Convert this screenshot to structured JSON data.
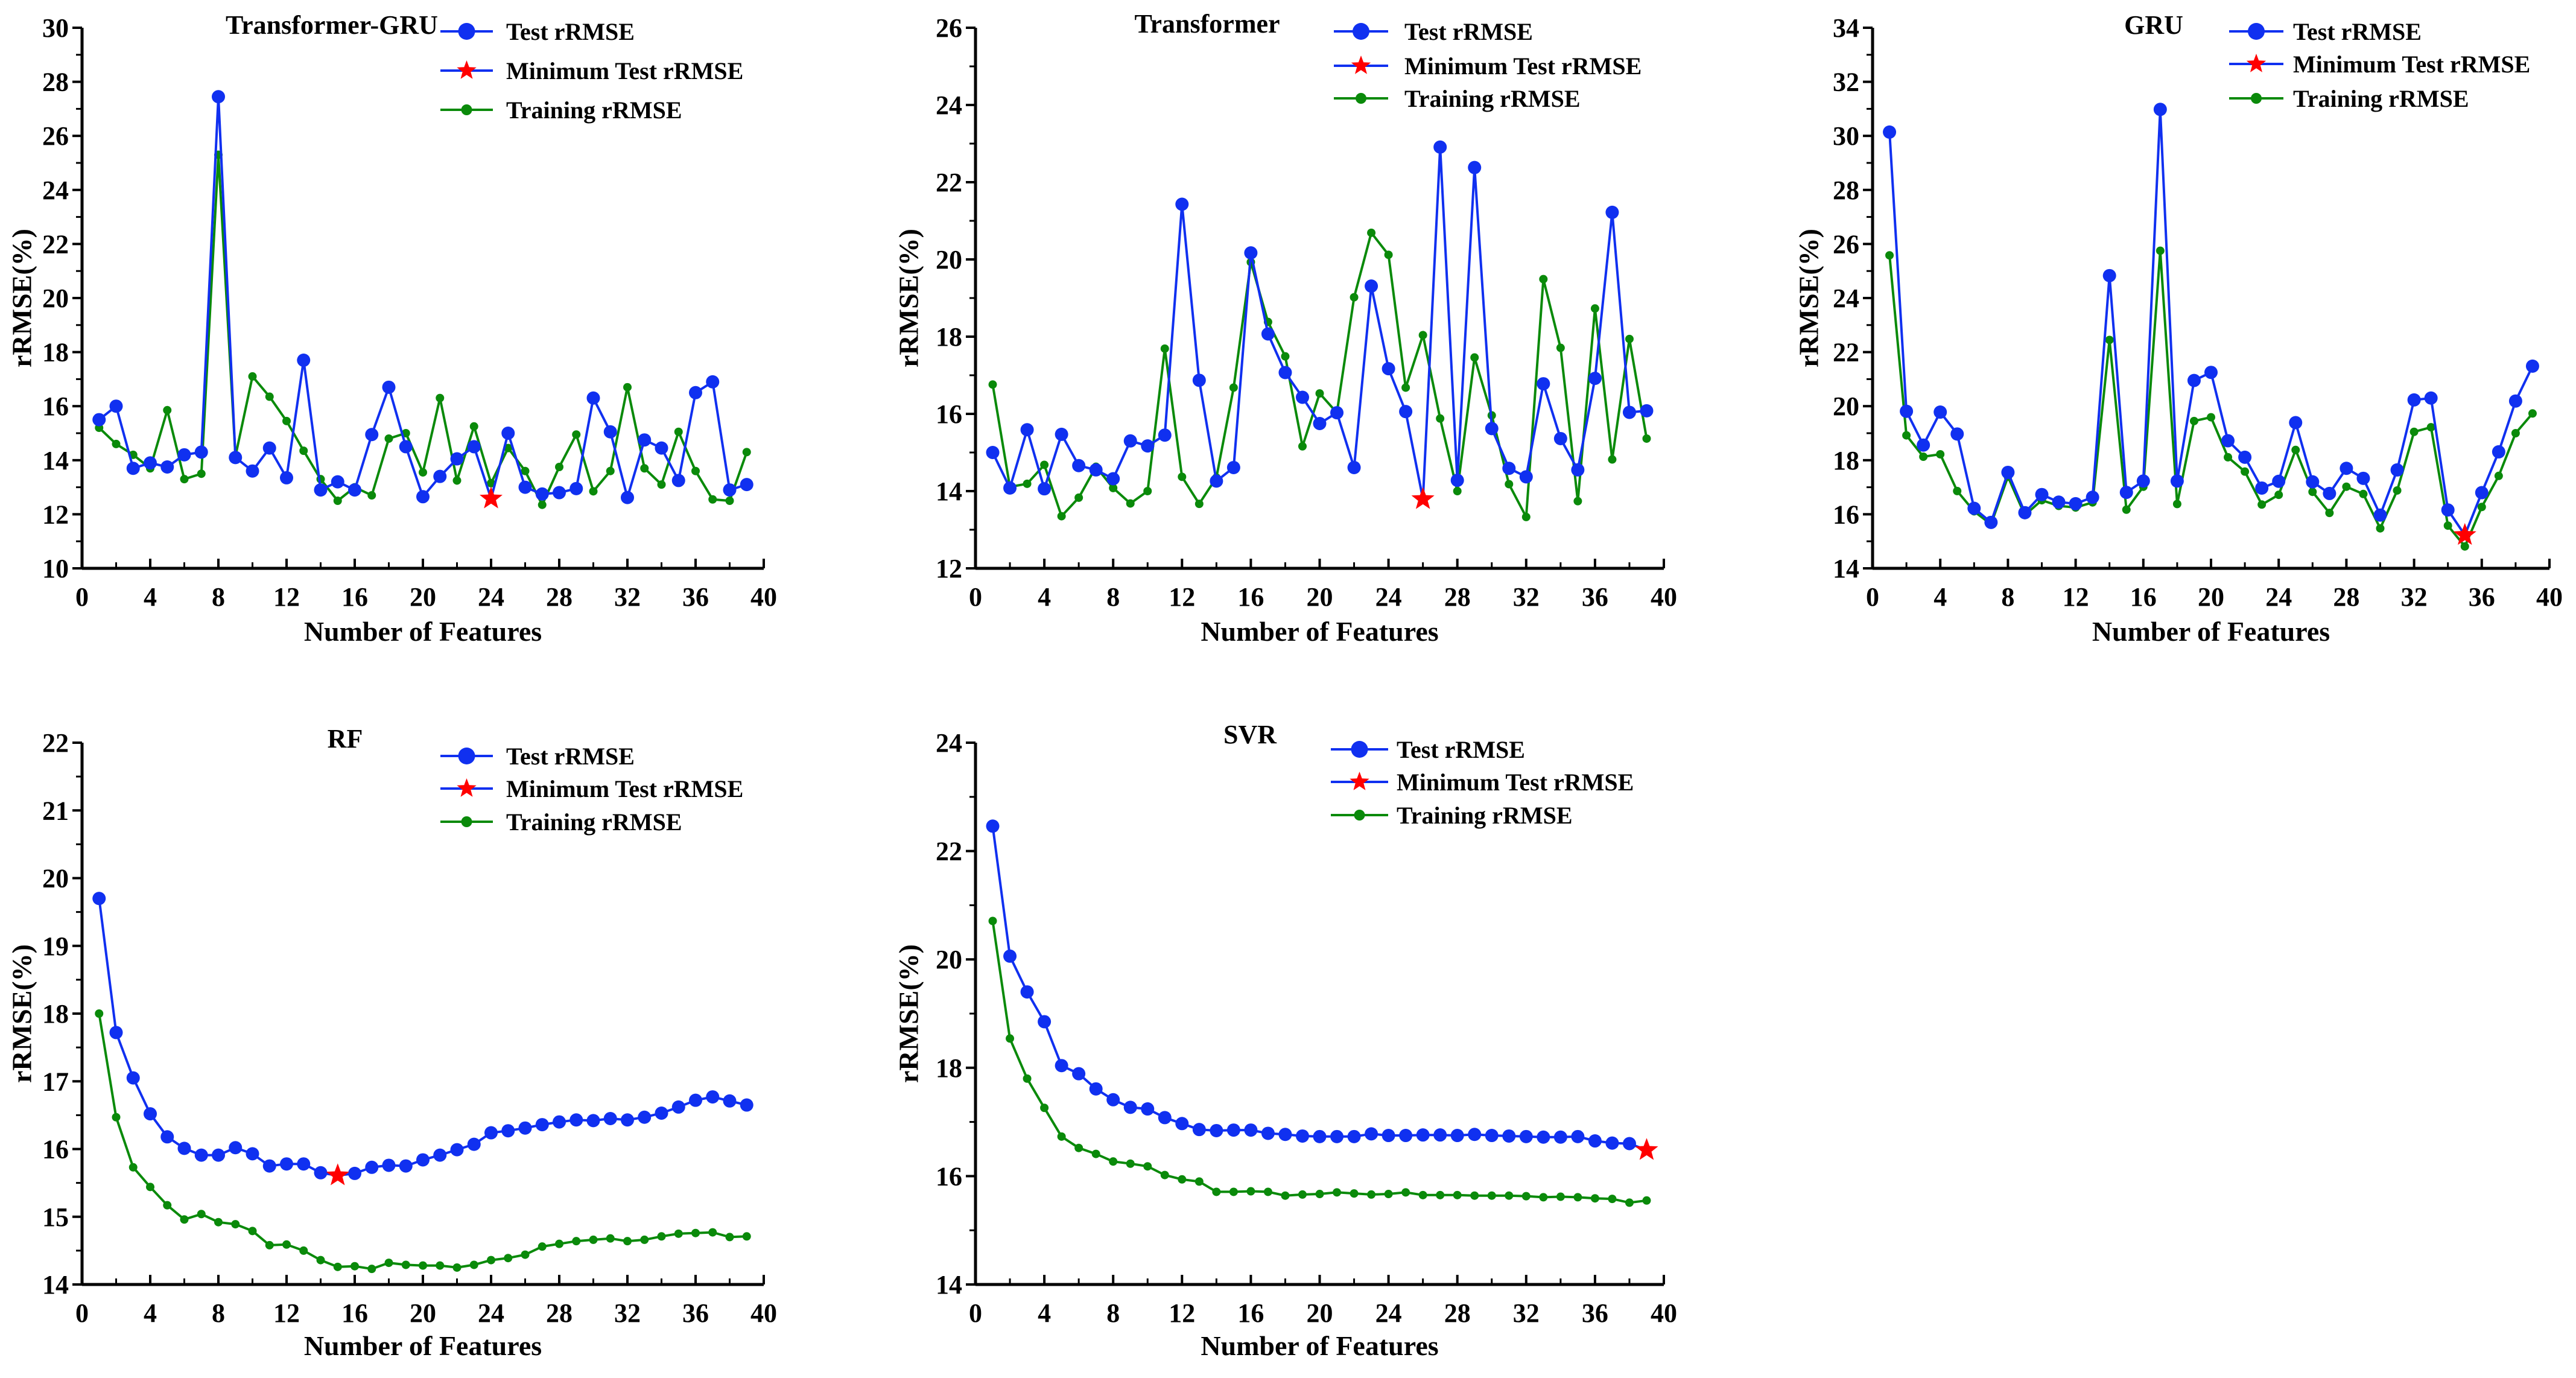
{
  "colors": {
    "test": "#1030f0",
    "train": "#0a8a0a",
    "min": "#ff0000",
    "axis": "#000000"
  },
  "legend": {
    "test": "Test rRMSE",
    "min": "Minimum Test rRMSE",
    "train": "Training rRMSE"
  },
  "chart_data": [
    {
      "type": "line",
      "title": "Transformer-GRU",
      "xlabel": "Number of Features",
      "ylabel": "rRMSE(%)",
      "xlim": [
        0,
        40
      ],
      "ylim": [
        10,
        30
      ],
      "xticks": [
        0,
        4,
        8,
        12,
        16,
        20,
        24,
        28,
        32,
        36,
        40
      ],
      "yticks": [
        10,
        12,
        14,
        16,
        18,
        20,
        22,
        24,
        26,
        28,
        30
      ],
      "x": [
        1,
        2,
        3,
        4,
        5,
        6,
        7,
        8,
        9,
        10,
        11,
        12,
        13,
        14,
        15,
        16,
        17,
        18,
        19,
        20,
        21,
        22,
        23,
        24,
        25,
        26,
        27,
        28,
        29,
        30,
        31,
        32,
        33,
        34,
        35,
        36,
        37,
        38,
        39
      ],
      "series": [
        {
          "name": "Test rRMSE",
          "values": [
            15.5,
            16.0,
            13.7,
            13.9,
            13.75,
            14.2,
            14.3,
            27.45,
            14.1,
            13.6,
            14.45,
            13.35,
            17.7,
            12.9,
            13.2,
            12.9,
            14.95,
            16.7,
            14.5,
            12.65,
            13.4,
            14.05,
            14.5,
            12.58,
            15.0,
            13.0,
            12.75,
            12.8,
            12.95,
            16.3,
            15.05,
            12.62,
            14.75,
            14.45,
            13.25,
            16.5,
            16.9,
            12.9,
            13.1
          ]
        },
        {
          "name": "Training rRMSE",
          "values": [
            15.2,
            14.6,
            14.2,
            13.7,
            15.85,
            13.3,
            13.5,
            25.3,
            14.15,
            17.1,
            16.35,
            15.45,
            14.35,
            13.3,
            12.5,
            13.0,
            12.7,
            14.8,
            15.0,
            13.55,
            16.3,
            13.25,
            15.25,
            13.15,
            14.45,
            13.6,
            12.35,
            13.75,
            14.95,
            12.85,
            13.6,
            16.7,
            13.7,
            13.1,
            15.05,
            13.6,
            12.55,
            12.5,
            14.3
          ]
        }
      ],
      "minimum": {
        "x": 24,
        "y": 12.58
      }
    },
    {
      "type": "line",
      "title": "Transformer",
      "xlabel": "Number of Features",
      "ylabel": "rRMSE(%)",
      "xlim": [
        0,
        40
      ],
      "ylim": [
        12,
        26
      ],
      "xticks": [
        0,
        4,
        8,
        12,
        16,
        20,
        24,
        28,
        32,
        36,
        40
      ],
      "yticks": [
        12,
        14,
        16,
        18,
        20,
        22,
        24,
        26
      ],
      "x": [
        1,
        2,
        3,
        4,
        5,
        6,
        7,
        8,
        9,
        10,
        11,
        12,
        13,
        14,
        15,
        16,
        17,
        18,
        19,
        20,
        21,
        22,
        23,
        24,
        25,
        26,
        27,
        28,
        29,
        30,
        31,
        32,
        33,
        34,
        35,
        36,
        37,
        38,
        39
      ],
      "series": [
        {
          "name": "Test rRMSE",
          "values": [
            15.0,
            14.08,
            15.59,
            14.06,
            15.47,
            14.66,
            14.55,
            14.32,
            15.3,
            15.17,
            15.45,
            21.43,
            16.87,
            14.26,
            14.61,
            20.17,
            18.07,
            17.07,
            16.43,
            15.75,
            16.03,
            14.61,
            19.31,
            17.17,
            16.06,
            13.79,
            22.91,
            14.28,
            22.38,
            15.62,
            14.59,
            14.37,
            16.78,
            15.36,
            14.55,
            16.92,
            21.22,
            16.04,
            16.08
          ]
        },
        {
          "name": "Training rRMSE",
          "values": [
            16.76,
            14.11,
            14.19,
            14.68,
            13.35,
            13.83,
            14.63,
            14.08,
            13.68,
            14.0,
            17.69,
            14.37,
            13.67,
            14.35,
            16.68,
            19.93,
            18.38,
            17.49,
            15.16,
            16.53,
            16.03,
            19.02,
            20.69,
            20.12,
            16.68,
            18.04,
            15.88,
            14.0,
            17.46,
            15.96,
            14.18,
            13.33,
            19.49,
            17.71,
            13.74,
            18.73,
            14.82,
            17.94,
            15.36
          ]
        }
      ],
      "minimum": {
        "x": 26,
        "y": 13.79
      }
    },
    {
      "type": "line",
      "title": "GRU",
      "xlabel": "Number of Features",
      "ylabel": "rRMSE(%)",
      "xlim": [
        0,
        40
      ],
      "ylim": [
        14,
        34
      ],
      "xticks": [
        0,
        4,
        8,
        12,
        16,
        20,
        24,
        28,
        32,
        36,
        40
      ],
      "yticks": [
        14,
        16,
        18,
        20,
        22,
        24,
        26,
        28,
        30,
        32,
        34
      ],
      "x": [
        1,
        2,
        3,
        4,
        5,
        6,
        7,
        8,
        9,
        10,
        11,
        12,
        13,
        14,
        15,
        16,
        17,
        18,
        19,
        20,
        21,
        22,
        23,
        24,
        25,
        26,
        27,
        28,
        29,
        30,
        31,
        32,
        33,
        34,
        35,
        36,
        37,
        38,
        39
      ],
      "series": [
        {
          "name": "Test rRMSE",
          "values": [
            30.14,
            19.81,
            18.56,
            19.78,
            18.97,
            16.22,
            15.7,
            17.55,
            16.06,
            16.73,
            16.45,
            16.39,
            16.63,
            24.83,
            16.81,
            17.23,
            30.98,
            17.23,
            20.95,
            21.25,
            18.72,
            18.11,
            16.97,
            17.22,
            19.39,
            17.2,
            16.77,
            17.7,
            17.33,
            15.97,
            17.64,
            20.23,
            20.3,
            16.16,
            15.23,
            16.8,
            18.31,
            20.19,
            21.48
          ]
        },
        {
          "name": "Training rRMSE",
          "values": [
            25.58,
            18.92,
            18.13,
            18.22,
            16.86,
            16.11,
            15.63,
            17.39,
            15.97,
            16.52,
            16.31,
            16.25,
            16.44,
            22.45,
            16.17,
            17.02,
            25.75,
            16.38,
            19.45,
            19.59,
            18.11,
            17.58,
            16.36,
            16.72,
            18.38,
            16.83,
            16.05,
            17.02,
            16.75,
            15.48,
            16.88,
            19.05,
            19.22,
            15.58,
            14.81,
            16.27,
            17.42,
            19.0,
            19.73
          ]
        }
      ],
      "minimum": {
        "x": 35,
        "y": 15.23
      }
    },
    {
      "type": "line",
      "title": "RF",
      "xlabel": "Number of Features",
      "ylabel": "rRMSE(%)",
      "xlim": [
        0,
        40
      ],
      "ylim": [
        14,
        22
      ],
      "xticks": [
        0,
        4,
        8,
        12,
        16,
        20,
        24,
        28,
        32,
        36,
        40
      ],
      "yticks": [
        14,
        15,
        16,
        17,
        18,
        19,
        20,
        21,
        22
      ],
      "x": [
        1,
        2,
        3,
        4,
        5,
        6,
        7,
        8,
        9,
        10,
        11,
        12,
        13,
        14,
        15,
        16,
        17,
        18,
        19,
        20,
        21,
        22,
        23,
        24,
        25,
        26,
        27,
        28,
        29,
        30,
        31,
        32,
        33,
        34,
        35,
        36,
        37,
        38,
        39
      ],
      "series": [
        {
          "name": "Test rRMSE",
          "values": [
            19.7,
            17.72,
            17.05,
            16.52,
            16.18,
            16.01,
            15.91,
            15.91,
            16.02,
            15.93,
            15.75,
            15.78,
            15.78,
            15.65,
            15.61,
            15.64,
            15.73,
            15.76,
            15.75,
            15.84,
            15.91,
            15.99,
            16.07,
            16.24,
            16.27,
            16.31,
            16.36,
            16.4,
            16.43,
            16.42,
            16.45,
            16.43,
            16.47,
            16.53,
            16.62,
            16.72,
            16.77,
            16.71,
            16.65
          ]
        },
        {
          "name": "Training rRMSE",
          "values": [
            18.0,
            16.47,
            15.73,
            15.44,
            15.17,
            14.96,
            15.04,
            14.92,
            14.89,
            14.79,
            14.58,
            14.59,
            14.5,
            14.36,
            14.26,
            14.27,
            14.23,
            14.32,
            14.29,
            14.28,
            14.28,
            14.25,
            14.29,
            14.36,
            14.39,
            14.44,
            14.56,
            14.6,
            14.64,
            14.66,
            14.68,
            14.64,
            14.66,
            14.71,
            14.75,
            14.76,
            14.77,
            14.7,
            14.71
          ]
        }
      ],
      "minimum": {
        "x": 15,
        "y": 15.61
      }
    },
    {
      "type": "line",
      "title": "SVR",
      "xlabel": "Number of Features",
      "ylabel": "rRMSE(%)",
      "xlim": [
        0,
        40
      ],
      "ylim": [
        14,
        24
      ],
      "xticks": [
        0,
        4,
        8,
        12,
        16,
        20,
        24,
        28,
        32,
        36,
        40
      ],
      "yticks": [
        14,
        16,
        18,
        20,
        22,
        24
      ],
      "x": [
        1,
        2,
        3,
        4,
        5,
        6,
        7,
        8,
        9,
        10,
        11,
        12,
        13,
        14,
        15,
        16,
        17,
        18,
        19,
        20,
        21,
        22,
        23,
        24,
        25,
        26,
        27,
        28,
        29,
        30,
        31,
        32,
        33,
        34,
        35,
        36,
        37,
        38,
        39
      ],
      "series": [
        {
          "name": "Test rRMSE",
          "values": [
            22.46,
            20.06,
            19.4,
            18.85,
            18.04,
            17.89,
            17.61,
            17.41,
            17.27,
            17.24,
            17.08,
            16.97,
            16.86,
            16.84,
            16.85,
            16.85,
            16.79,
            16.77,
            16.74,
            16.73,
            16.73,
            16.73,
            16.78,
            16.75,
            16.75,
            16.76,
            16.76,
            16.75,
            16.77,
            16.75,
            16.74,
            16.73,
            16.72,
            16.72,
            16.73,
            16.65,
            16.61,
            16.6,
            16.48
          ]
        },
        {
          "name": "Training rRMSE",
          "values": [
            20.71,
            18.54,
            17.8,
            17.26,
            16.73,
            16.52,
            16.41,
            16.27,
            16.23,
            16.18,
            16.02,
            15.94,
            15.9,
            15.71,
            15.71,
            15.72,
            15.71,
            15.64,
            15.66,
            15.67,
            15.7,
            15.68,
            15.66,
            15.67,
            15.7,
            15.65,
            15.65,
            15.65,
            15.64,
            15.64,
            15.64,
            15.63,
            15.61,
            15.62,
            15.61,
            15.59,
            15.58,
            15.51,
            15.55
          ]
        }
      ],
      "minimum": {
        "x": 39,
        "y": 16.48
      }
    }
  ]
}
